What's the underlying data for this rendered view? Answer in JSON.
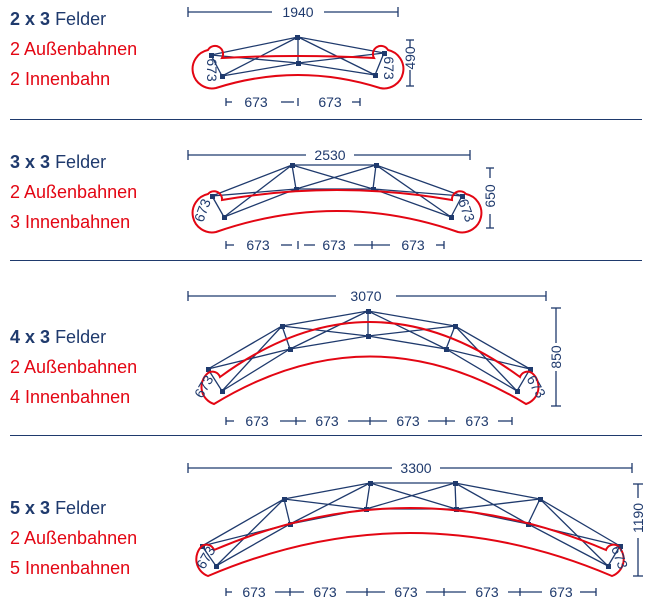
{
  "rows": [
    {
      "count": "2 x 3",
      "felder": "Felder",
      "aussen": "2 Außenbahnen",
      "innen": "2 Innenbahn",
      "width": "1940",
      "height": "490",
      "segment": "673",
      "bottom": [
        "673",
        "673"
      ]
    },
    {
      "count": "3 x 3",
      "felder": "Felder",
      "aussen": "2 Außenbahnen",
      "innen": "3 Innenbahnen",
      "width": "2530",
      "height": "650",
      "segment": "673",
      "bottom": [
        "673",
        "673",
        "673"
      ]
    },
    {
      "count": "4 x 3",
      "felder": "Felder",
      "aussen": "2 Außenbahnen",
      "innen": "4 Innenbahnen",
      "width": "3070",
      "height": "850",
      "segment": "673",
      "bottom": [
        "673",
        "673",
        "673",
        "673"
      ]
    },
    {
      "count": "5 x 3",
      "felder": "Felder",
      "aussen": "2 Außenbahnen",
      "innen": "5 Innenbahnen",
      "width": "3300",
      "height": "1190",
      "segment": "673",
      "bottom": [
        "673",
        "673",
        "673",
        "673",
        "673"
      ]
    }
  ],
  "colors": {
    "navy": "#1f3a6d",
    "red": "#e30613"
  }
}
